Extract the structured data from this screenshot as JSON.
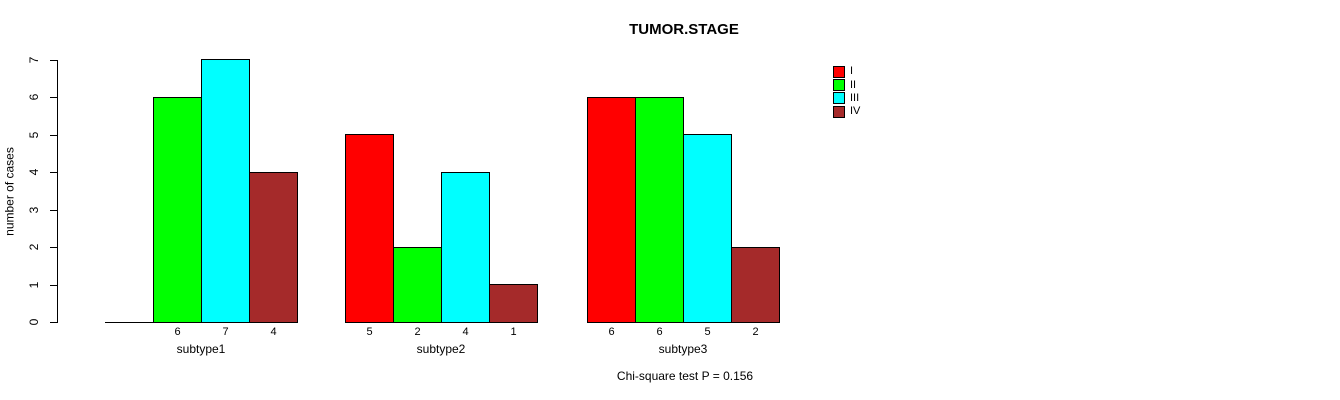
{
  "chart_data": {
    "type": "bar",
    "title": "TUMOR.STAGE",
    "ylabel": "number of cases",
    "xlabel": "",
    "categories": [
      "subtype1",
      "subtype2",
      "subtype3"
    ],
    "series": [
      {
        "name": "I",
        "color": "#ff0000",
        "values": [
          0,
          5,
          6
        ]
      },
      {
        "name": "II",
        "color": "#00ff00",
        "values": [
          6,
          2,
          6
        ]
      },
      {
        "name": "III",
        "color": "#00ffff",
        "values": [
          7,
          4,
          5
        ]
      },
      {
        "name": "IV",
        "color": "#a52a2a",
        "values": [
          4,
          1,
          2
        ]
      }
    ],
    "bar_value_labels": [
      [
        "",
        "6",
        "7",
        "4"
      ],
      [
        "5",
        "2",
        "4",
        "1"
      ],
      [
        "6",
        "6",
        "5",
        "2"
      ]
    ],
    "ylim": [
      0,
      7
    ],
    "yticks": [
      0,
      1,
      2,
      3,
      4,
      5,
      6,
      7
    ],
    "grid": false,
    "legend_position": "top-right",
    "annotation": "Chi-square test P = 0.156"
  },
  "colors": {
    "background": "#ffffff",
    "axis": "#000000",
    "text": "#000000"
  }
}
